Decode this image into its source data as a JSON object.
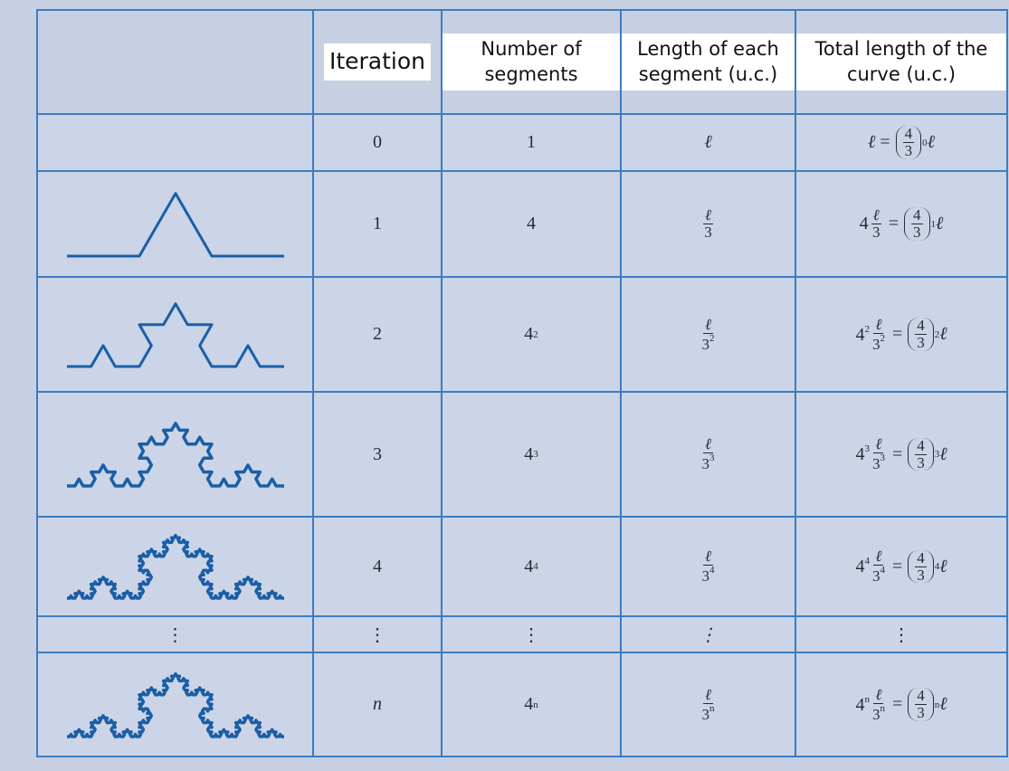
{
  "table": {
    "header": [
      "Iteration",
      "Number of segments",
      "Length of each segment (u.c.)",
      "Total length of the curve (u.c.)"
    ],
    "rows": [
      {
        "iteration": "0",
        "segments": {
          "base": "1"
        },
        "length": {
          "text": "ℓ"
        },
        "total": {
          "lhs": {
            "text": "ℓ"
          },
          "eq": "=",
          "ratio": {
            "num": "4",
            "den": "3"
          },
          "power": "0",
          "factor": "ℓ"
        }
      },
      {
        "iteration": "1",
        "segments": {
          "base": "4"
        },
        "length": {
          "num": "ℓ",
          "den": "3"
        },
        "total": {
          "lhs": {
            "coef": "4",
            "num": "ℓ",
            "den": "3"
          },
          "eq": "=",
          "ratio": {
            "num": "4",
            "den": "3"
          },
          "power": "1",
          "factor": "ℓ"
        }
      },
      {
        "iteration": "2",
        "segments": {
          "base": "4",
          "exp": "2"
        },
        "length": {
          "num": "ℓ",
          "den": "3",
          "den_exp": "2"
        },
        "total": {
          "lhs": {
            "coef": "4",
            "coef_exp": "2",
            "num": "ℓ",
            "den": "3",
            "den_exp": "2"
          },
          "eq": "=",
          "ratio": {
            "num": "4",
            "den": "3"
          },
          "power": "2",
          "factor": "ℓ"
        }
      },
      {
        "iteration": "3",
        "segments": {
          "base": "4",
          "exp": "3"
        },
        "length": {
          "num": "ℓ",
          "den": "3",
          "den_exp": "3"
        },
        "total": {
          "lhs": {
            "coef": "4",
            "coef_exp": "3",
            "num": "ℓ",
            "den": "3",
            "den_exp": "3"
          },
          "eq": "=",
          "ratio": {
            "num": "4",
            "den": "3"
          },
          "power": "3",
          "factor": "ℓ"
        }
      },
      {
        "iteration": "4",
        "segments": {
          "base": "4",
          "exp": "4"
        },
        "length": {
          "num": "ℓ",
          "den": "3",
          "den_exp": "4"
        },
        "total": {
          "lhs": {
            "coef": "4",
            "coef_exp": "4",
            "num": "ℓ",
            "den": "3",
            "den_exp": "4"
          },
          "eq": "=",
          "ratio": {
            "num": "4",
            "den": "3"
          },
          "power": "4",
          "factor": "ℓ"
        }
      },
      {
        "curve_dots": "⋮",
        "iteration": "⋮",
        "segments": {
          "base": "⋮"
        },
        "length": {
          "text": "⋮"
        },
        "total": {
          "text": "⋮"
        }
      },
      {
        "iteration": "n",
        "segments": {
          "base": "4",
          "exp": "n"
        },
        "length": {
          "num": "ℓ",
          "den": "3",
          "den_exp": "n"
        },
        "total": {
          "lhs": {
            "coef": "4",
            "coef_exp": "n",
            "num": "ℓ",
            "den": "3",
            "den_exp": "n"
          },
          "eq": "=",
          "ratio": {
            "num": "4",
            "den": "3"
          },
          "power": "n",
          "factor": "ℓ"
        }
      }
    ]
  }
}
